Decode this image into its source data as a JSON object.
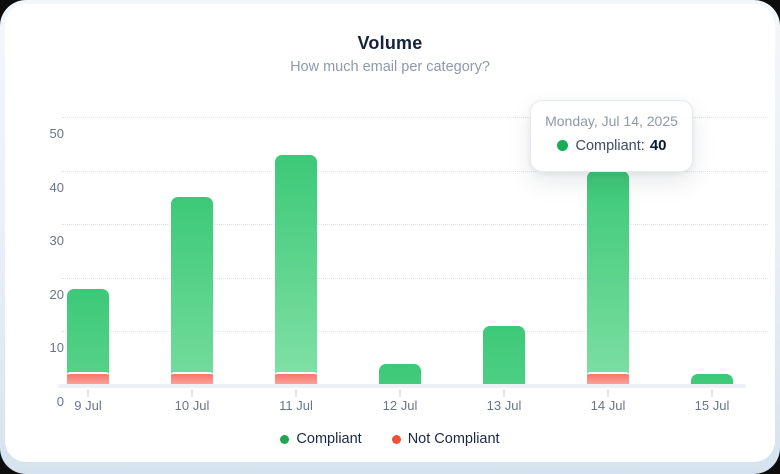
{
  "header": {
    "title": "Volume",
    "subtitle": "How much email per category?"
  },
  "tooltip": {
    "date": "Monday, Jul 14, 2025",
    "series_label": "Compliant:",
    "value": "40",
    "dot_color": "#17ac56"
  },
  "legend": {
    "items": [
      {
        "label": "Compliant",
        "color": "#22a455"
      },
      {
        "label": "Not Compliant",
        "color": "#f0503a"
      }
    ]
  },
  "chart_data": {
    "type": "bar",
    "stacked": true,
    "title": "Volume",
    "subtitle": "How much email per category?",
    "categories": [
      "9 Jul",
      "10 Jul",
      "11 Jul",
      "12 Jul",
      "13 Jul",
      "14 Jul",
      "15 Jul"
    ],
    "series": [
      {
        "name": "Compliant",
        "values": [
          18,
          35,
          43,
          4,
          11,
          40,
          2
        ],
        "gradient_top": "#3cc977",
        "gradient_bottom": "#8ee5ae"
      },
      {
        "name": "Not Compliant",
        "values": [
          2,
          2,
          2,
          0,
          0,
          2,
          0
        ],
        "gradient_top": "#f8756b",
        "gradient_bottom": "#fba59d"
      }
    ],
    "xlabel": "",
    "ylabel": "",
    "y_ticks": [
      0,
      10,
      20,
      30,
      40,
      50
    ],
    "ylim": [
      0,
      50
    ],
    "grid": "horizontal-dotted",
    "legend_position": "bottom",
    "highlighted_category": "14 Jul",
    "highlight_tooltip": {
      "date": "Monday, Jul 14, 2025",
      "series": "Compliant",
      "value": 40
    },
    "axis_text_color": "#697588",
    "gridline_color": "#dde2e9"
  }
}
